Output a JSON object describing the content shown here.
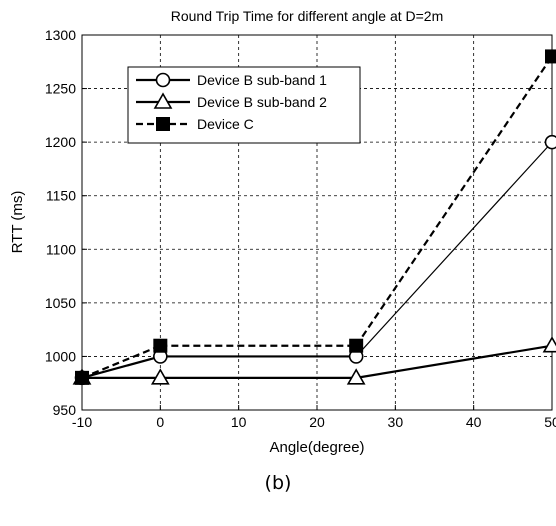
{
  "chart_data": {
    "type": "line",
    "title": "Round Trip Time for different angle at D=2m",
    "xlabel": "Angle(degree)",
    "ylabel": "RTT (ms)",
    "xlim": [
      -10,
      50
    ],
    "ylim": [
      950,
      1300
    ],
    "xticks": [
      -10,
      0,
      10,
      20,
      30,
      40,
      50
    ],
    "yticks": [
      950,
      1000,
      1050,
      1100,
      1150,
      1200,
      1250,
      1300
    ],
    "grid": true,
    "legend_position": "top-left",
    "series": [
      {
        "name": "Device B sub-band 1",
        "x": [
          -10,
          0,
          25,
          50
        ],
        "y": [
          980,
          1000,
          1000,
          1200
        ],
        "marker": "circle",
        "line": "solid",
        "color": "#000000"
      },
      {
        "name": "Device B sub-band 2",
        "x": [
          -10,
          0,
          25,
          50
        ],
        "y": [
          980,
          980,
          980,
          1010
        ],
        "marker": "triangle",
        "line": "solid",
        "color": "#000000"
      },
      {
        "name": "Device C",
        "x": [
          -10,
          0,
          25,
          50
        ],
        "y": [
          980,
          1010,
          1010,
          1280
        ],
        "marker": "square",
        "line": "dashed",
        "color": "#000000"
      }
    ]
  },
  "caption": "(b)"
}
